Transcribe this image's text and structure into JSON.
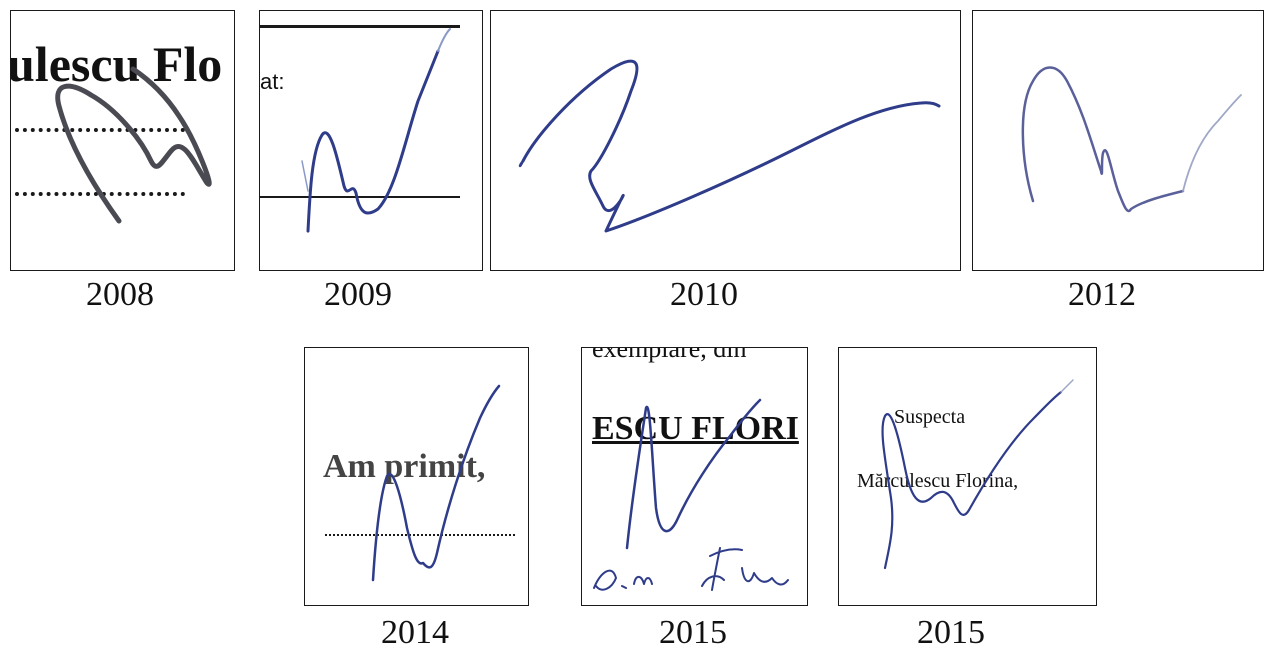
{
  "specimens": [
    {
      "year": "2008",
      "doc_text": "ulescu Flo"
    },
    {
      "year": "2009",
      "doc_text": "at:"
    },
    {
      "year": "2010"
    },
    {
      "year": "2012"
    },
    {
      "year": "2014",
      "doc_text": "Am primit,"
    },
    {
      "year": "2015",
      "doc_text_top": "exemplare, din",
      "doc_text": "ESCU FLORI"
    },
    {
      "year": "2015",
      "doc_text_1": "Suspecta",
      "doc_text_2": "Mărculescu Florina,"
    }
  ],
  "colors": {
    "ink_blue": "#2f3c8a",
    "ink_dark": "#3a3a4a",
    "frame": "#1a1a1a"
  }
}
